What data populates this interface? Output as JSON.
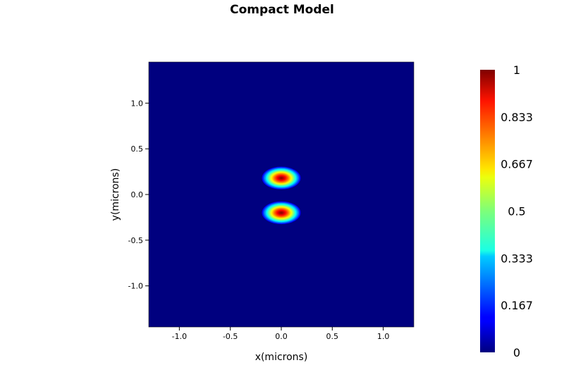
{
  "chart_data": {
    "type": "heatmap",
    "title": "Compact Model",
    "xlabel": "x(microns)",
    "ylabel": "y(microns)",
    "xlim": [
      -1.3,
      1.3
    ],
    "ylim": [
      -1.45,
      1.45
    ],
    "x_ticks": [
      "-1.0",
      "-0.5",
      "0.0",
      "0.5",
      "1.0"
    ],
    "x_tick_values": [
      -1.0,
      -0.5,
      0.0,
      0.5,
      1.0
    ],
    "y_ticks": [
      "1.0",
      "0.5",
      "0.0",
      "-0.5",
      "-1.0"
    ],
    "y_tick_values": [
      1.0,
      0.5,
      0.0,
      -0.5,
      -1.0
    ],
    "colormap": "jet",
    "colorbar": {
      "range": [
        0,
        1
      ],
      "ticks": [
        "1",
        "0.833",
        "0.667",
        "0.5",
        "0.333",
        "0.167",
        "0"
      ],
      "tick_values": [
        1,
        0.833,
        0.667,
        0.5,
        0.333,
        0.167,
        0
      ]
    },
    "lobes": [
      {
        "x": 0.0,
        "y": 0.18,
        "peak": 1.0
      },
      {
        "x": 0.0,
        "y": -0.2,
        "peak": 1.0
      }
    ],
    "background_value": 0.0
  }
}
